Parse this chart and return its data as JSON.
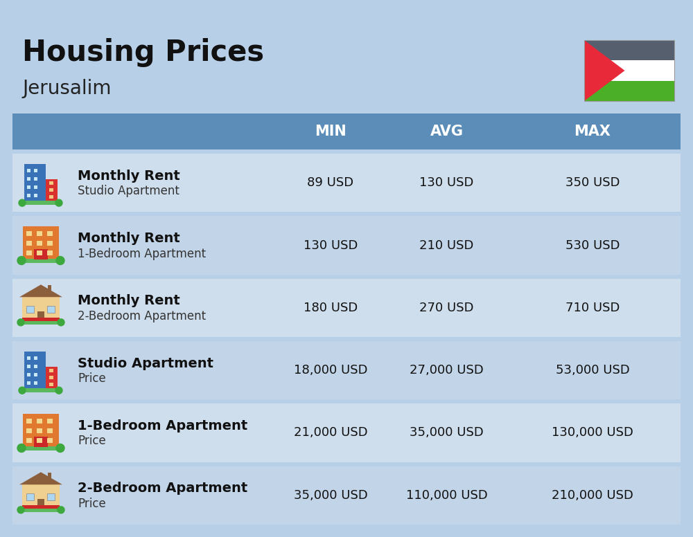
{
  "title": "Housing Prices",
  "subtitle": "Jerusalim",
  "background_color": "#b8cfe8",
  "header_color": "#5b8db8",
  "header_text_color": "#ffffff",
  "row_color_light": "#cfdeed",
  "row_color_dark": "#c2d5e8",
  "col_headers": [
    "MIN",
    "AVG",
    "MAX"
  ],
  "rows": [
    {
      "bold_text": "Monthly Rent",
      "sub_text": "Studio Apartment",
      "min": "89 USD",
      "avg": "130 USD",
      "max": "350 USD",
      "icon": "blue_office"
    },
    {
      "bold_text": "Monthly Rent",
      "sub_text": "1-Bedroom Apartment",
      "min": "130 USD",
      "avg": "210 USD",
      "max": "530 USD",
      "icon": "orange_apt"
    },
    {
      "bold_text": "Monthly Rent",
      "sub_text": "2-Bedroom Apartment",
      "min": "180 USD",
      "avg": "270 USD",
      "max": "710 USD",
      "icon": "beige_house"
    },
    {
      "bold_text": "Studio Apartment",
      "sub_text": "Price",
      "min": "18,000 USD",
      "avg": "27,000 USD",
      "max": "53,000 USD",
      "icon": "blue_office"
    },
    {
      "bold_text": "1-Bedroom Apartment",
      "sub_text": "Price",
      "min": "21,000 USD",
      "avg": "35,000 USD",
      "max": "130,000 USD",
      "icon": "orange_apt"
    },
    {
      "bold_text": "2-Bedroom Apartment",
      "sub_text": "Price",
      "min": "35,000 USD",
      "avg": "110,000 USD",
      "max": "210,000 USD",
      "icon": "beige_house"
    }
  ]
}
